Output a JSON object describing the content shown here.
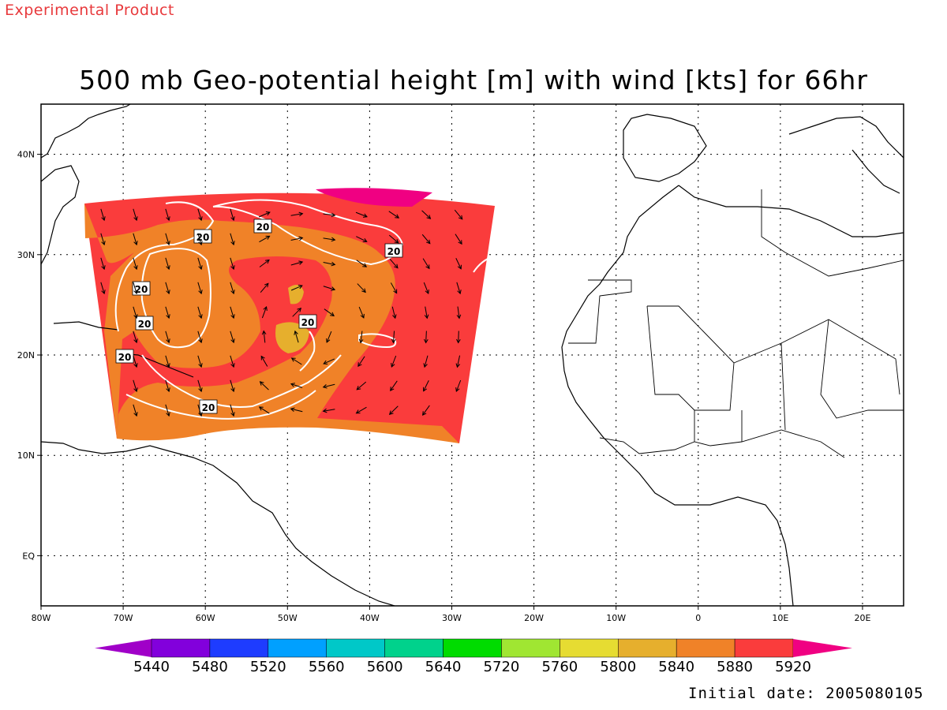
{
  "experimental_label": "Experimental Product",
  "title": "500 mb Geo-potential height [m] with wind [kts] for 66hr",
  "initial_date_text": "Initial date: 2005080105",
  "chart_data": {
    "type": "heatmap",
    "title": "500 mb Geo-potential height [m] with wind [kts] for 66hr",
    "projection": "lat-lon",
    "lon_range": [
      -80,
      25
    ],
    "lat_range": [
      -5,
      45
    ],
    "grid": true,
    "x_ticks": [
      "80W",
      "70W",
      "60W",
      "50W",
      "40W",
      "30W",
      "20W",
      "10W",
      "0",
      "10E",
      "20E"
    ],
    "y_ticks": [
      "EQ",
      "10N",
      "20N",
      "30N",
      "40N"
    ],
    "colorbar": {
      "labels": [
        "5440",
        "5480",
        "5520",
        "5560",
        "5600",
        "5640",
        "5720",
        "5760",
        "5800",
        "5840",
        "5880",
        "5920"
      ],
      "colors": [
        "#a000c8",
        "#8200dc",
        "#1e3cff",
        "#00a0ff",
        "#00c8c8",
        "#00d28c",
        "#00dc00",
        "#a0e632",
        "#e6dc32",
        "#e6af2d",
        "#f08228",
        "#fa3c3c",
        "#f00082"
      ]
    },
    "wind_isotach_labels": [
      "20",
      "20",
      "20",
      "20",
      "20",
      "20",
      "20",
      "20"
    ],
    "data_domain": "tropical North Atlantic, approx. 75W-25W, 12N-37N",
    "dominant_height_levels": [
      "5840",
      "5880",
      "5920"
    ]
  }
}
